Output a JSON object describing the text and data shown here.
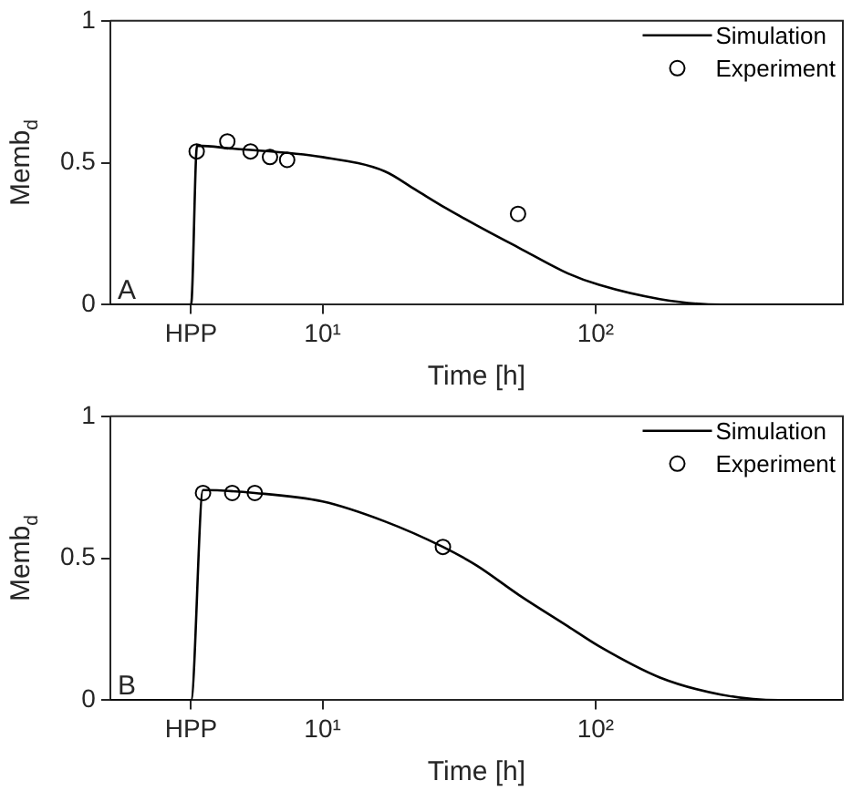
{
  "chart_data": [
    {
      "type": "line",
      "xlabel": "Time [h]",
      "ylabel": "Memb$_{d}$",
      "annotations": [
        "A"
      ],
      "log": "x",
      "grid": false,
      "legend": "top right",
      "xlim": [
        1.67,
        805
      ],
      "ylim": [
        0,
        1
      ],
      "xticks": [
        {
          "value": 3.3,
          "label": "HPP"
        },
        {
          "value": 10,
          "label": "10¹"
        },
        {
          "value": 100,
          "label": "10²"
        }
      ],
      "yticks": [
        0,
        0.5,
        1
      ],
      "series": [
        {
          "name": "Simulation",
          "color": "#000000",
          "marker": "none",
          "line_style": "solid",
          "x": [
            1.67,
            3.3,
            3.47,
            4.67,
            10,
            16.9,
            21.9,
            28.3,
            36.6,
            52.5,
            79.3,
            103,
            172,
            288,
            805
          ],
          "values": [
            0,
            0,
            0.56,
            0.55,
            0.52,
            0.47,
            0.405,
            0.34,
            0.28,
            0.2,
            0.11,
            0.07,
            0.02,
            0,
            0
          ]
        },
        {
          "name": "Experiment",
          "type": "scatter",
          "color": "#000000",
          "marker": "circle",
          "x": [
            3.46,
            4.48,
            5.45,
            6.42,
            7.42,
            52
          ],
          "values": [
            0.54,
            0.575,
            0.54,
            0.52,
            0.51,
            0.32
          ]
        }
      ]
    },
    {
      "type": "line",
      "xlabel": "Time [h]",
      "ylabel": "Memb$_{d}$",
      "annotations": [
        "B"
      ],
      "log": "x",
      "grid": false,
      "legend": "top right",
      "xlim": [
        1.67,
        805
      ],
      "ylim": [
        0,
        1
      ],
      "xticks": [
        {
          "value": 3.3,
          "label": "HPP"
        },
        {
          "value": 10,
          "label": "10¹"
        },
        {
          "value": 100,
          "label": "10²"
        }
      ],
      "yticks": [
        0,
        0.5,
        1
      ],
      "series": [
        {
          "name": "Simulation",
          "color": "#000000",
          "marker": "none",
          "line_style": "solid",
          "x": [
            1.67,
            3.3,
            3.65,
            5.65,
            10,
            16.9,
            27.6,
            36.6,
            52.5,
            79.3,
            103,
            172,
            288,
            468,
            805
          ],
          "values": [
            0,
            0,
            0.74,
            0.73,
            0.7,
            0.63,
            0.54,
            0.475,
            0.37,
            0.26,
            0.19,
            0.08,
            0.02,
            0,
            0
          ]
        },
        {
          "name": "Experiment",
          "type": "scatter",
          "color": "#000000",
          "marker": "circle",
          "x": [
            3.65,
            4.67,
            5.65,
            27.6
          ],
          "values": [
            0.73,
            0.73,
            0.73,
            0.54
          ]
        }
      ]
    }
  ]
}
